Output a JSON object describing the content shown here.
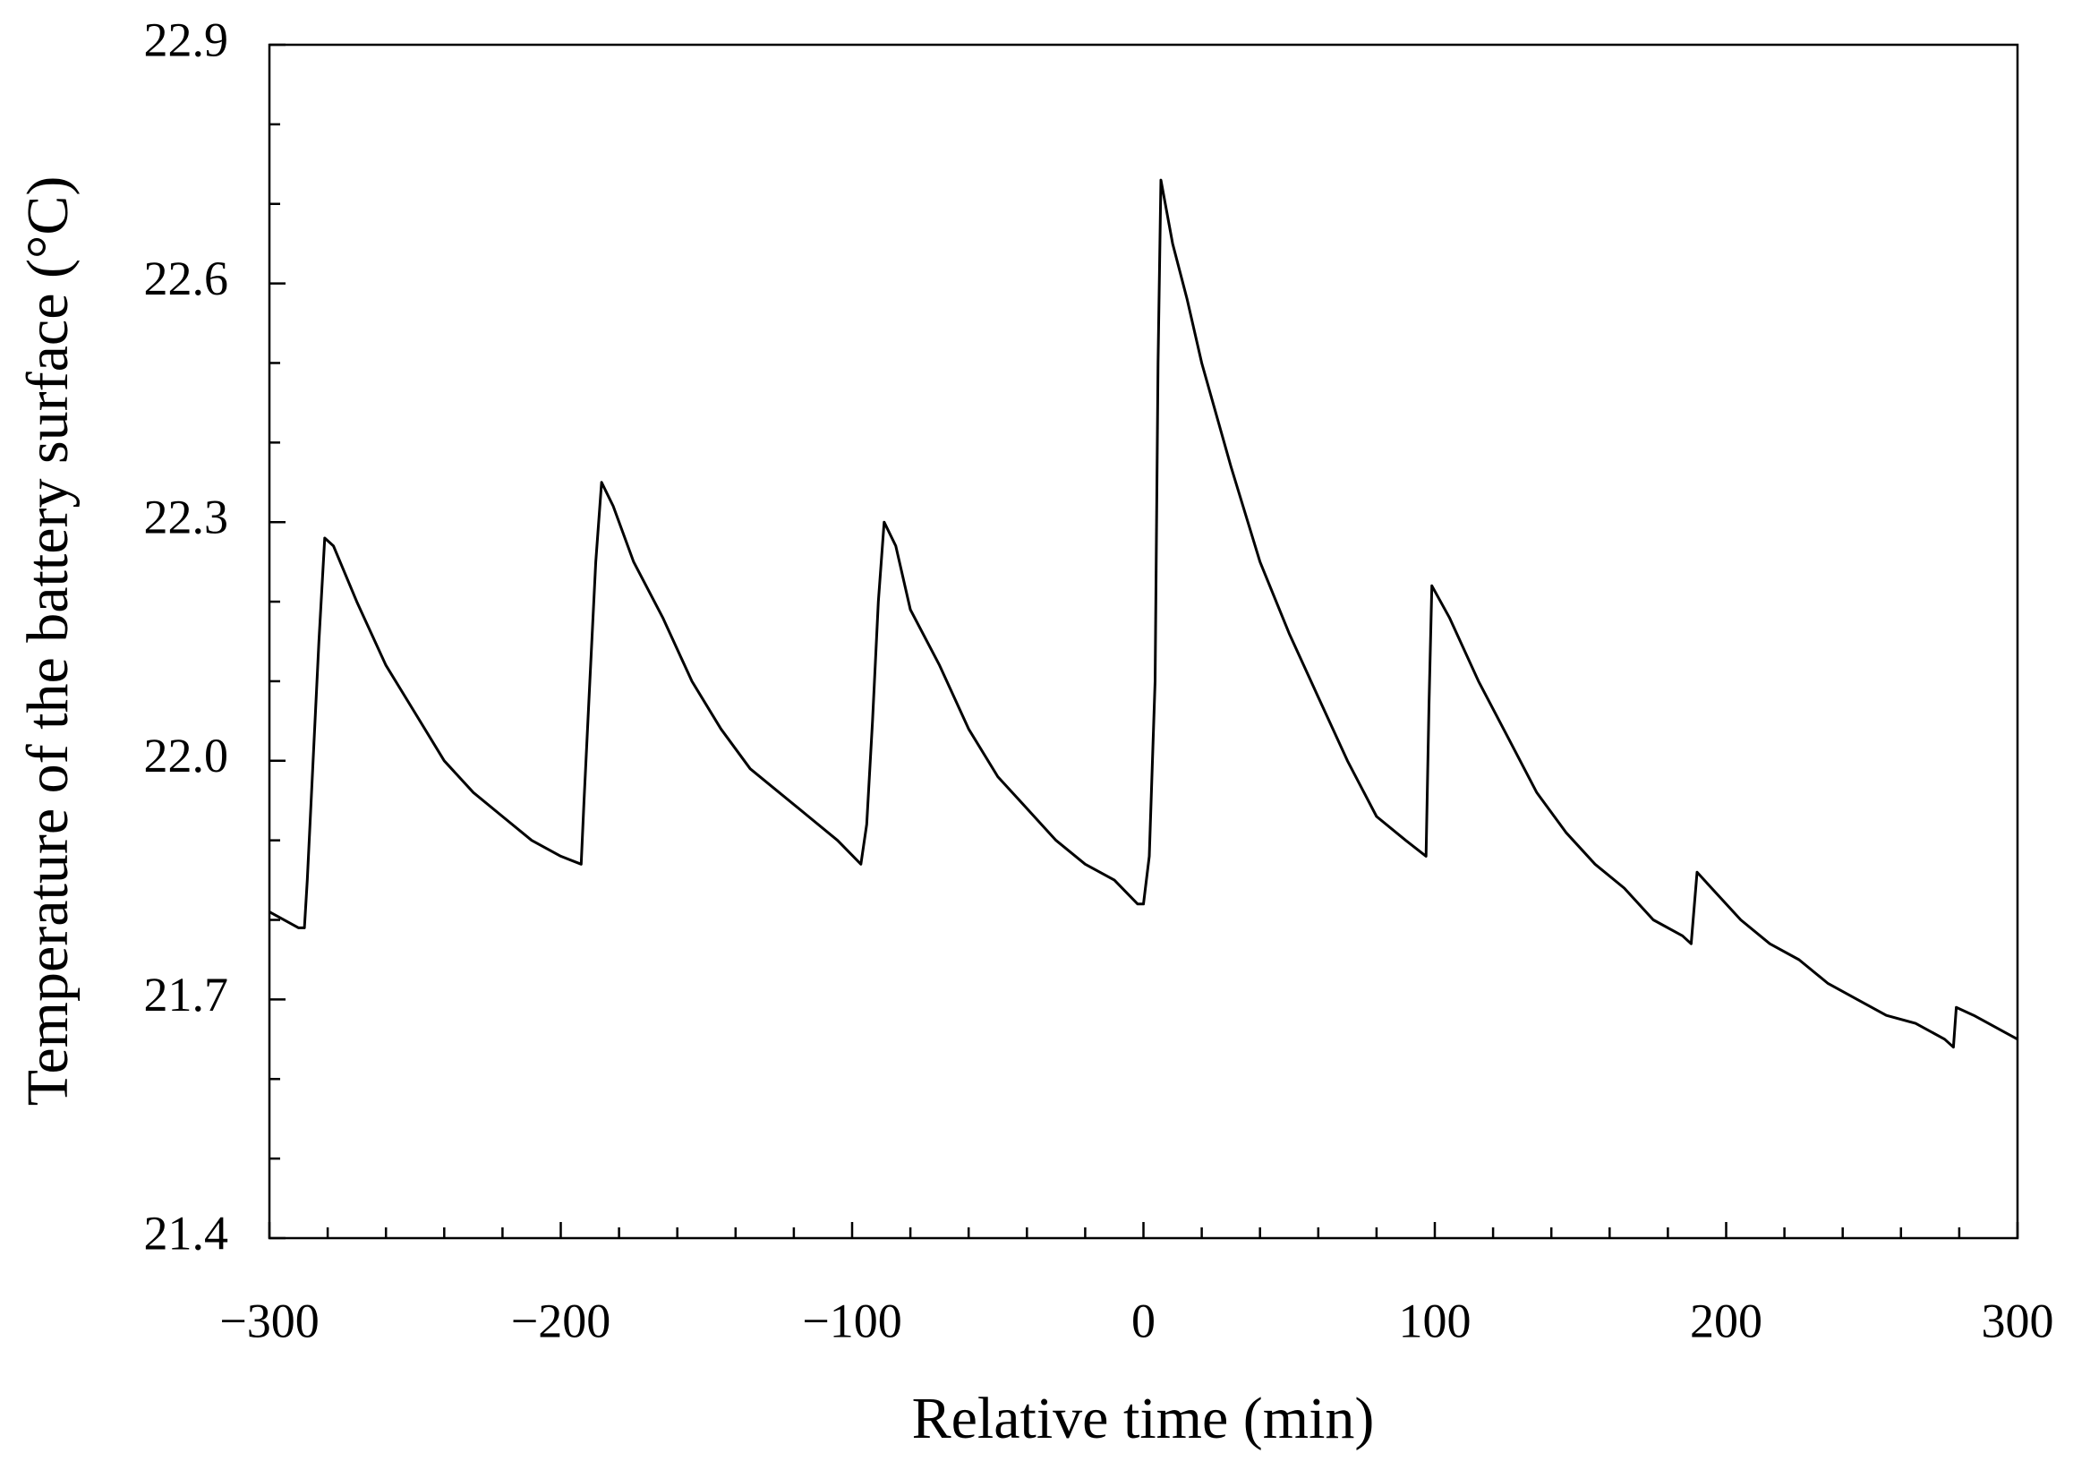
{
  "chart_data": {
    "type": "line",
    "xlabel": "Relative time (min)",
    "ylabel": "Temperature of the battery surface (°C)",
    "xlim": [
      -300,
      300
    ],
    "ylim": [
      21.4,
      22.9
    ],
    "xticks": [
      {
        "value": -300,
        "label": "−300"
      },
      {
        "value": -200,
        "label": "−200"
      },
      {
        "value": -100,
        "label": "−100"
      },
      0,
      100,
      200,
      300
    ],
    "yticks": [
      21.4,
      21.7,
      {
        "value": 22,
        "label": "22.0"
      },
      22.3,
      22.6,
      22.9
    ],
    "xminorticks": [
      -280,
      -260,
      -240,
      -220,
      -180,
      -160,
      -140,
      -120,
      -80,
      -60,
      -40,
      -20,
      20,
      40,
      60,
      80,
      120,
      140,
      160,
      180,
      220,
      240,
      260,
      280
    ],
    "yminorticks": [
      21.5,
      21.6,
      21.8,
      21.9,
      22.1,
      22.2,
      22.4,
      22.5,
      22.7,
      22.8
    ],
    "series": [
      {
        "color": "#000000",
        "x": [
          -300,
          -290,
          -288,
          -287,
          -285,
          -283,
          -281,
          -278,
          -270,
          -260,
          -250,
          -240,
          -230,
          -220,
          -210,
          -200,
          -193,
          -192,
          -190,
          -188,
          -186,
          -182,
          -175,
          -165,
          -155,
          -145,
          -135,
          -125,
          -115,
          -105,
          -97,
          -95,
          -93,
          -91,
          -89,
          -85,
          -80,
          -70,
          -60,
          -50,
          -40,
          -30,
          -20,
          -10,
          -2,
          0,
          2,
          4,
          5,
          6,
          10,
          15,
          20,
          30,
          40,
          50,
          60,
          70,
          80,
          90,
          97,
          98,
          99,
          105,
          115,
          125,
          135,
          145,
          155,
          165,
          175,
          185,
          188,
          190,
          195,
          205,
          215,
          225,
          235,
          245,
          255,
          265,
          275,
          278,
          279,
          285,
          295,
          300
        ],
        "values": [
          21.81,
          21.79,
          21.79,
          21.85,
          22.0,
          22.15,
          22.28,
          22.27,
          22.2,
          22.12,
          22.06,
          22.0,
          21.96,
          21.93,
          21.9,
          21.88,
          21.87,
          21.95,
          22.1,
          22.25,
          22.35,
          22.32,
          22.25,
          22.18,
          22.1,
          22.04,
          21.99,
          21.96,
          21.93,
          21.9,
          21.87,
          21.92,
          22.05,
          22.2,
          22.3,
          22.27,
          22.19,
          22.12,
          22.04,
          21.98,
          21.94,
          21.9,
          21.87,
          21.85,
          21.82,
          21.82,
          21.88,
          22.1,
          22.5,
          22.73,
          22.65,
          22.58,
          22.5,
          22.37,
          22.25,
          22.16,
          22.08,
          22.0,
          21.93,
          21.9,
          21.88,
          22.07,
          22.22,
          22.18,
          22.1,
          22.03,
          21.96,
          21.91,
          21.87,
          21.84,
          21.8,
          21.78,
          21.77,
          21.86,
          21.84,
          21.8,
          21.77,
          21.75,
          21.72,
          21.7,
          21.68,
          21.67,
          21.65,
          21.64,
          21.69,
          21.68,
          21.66,
          21.65
        ]
      }
    ]
  }
}
